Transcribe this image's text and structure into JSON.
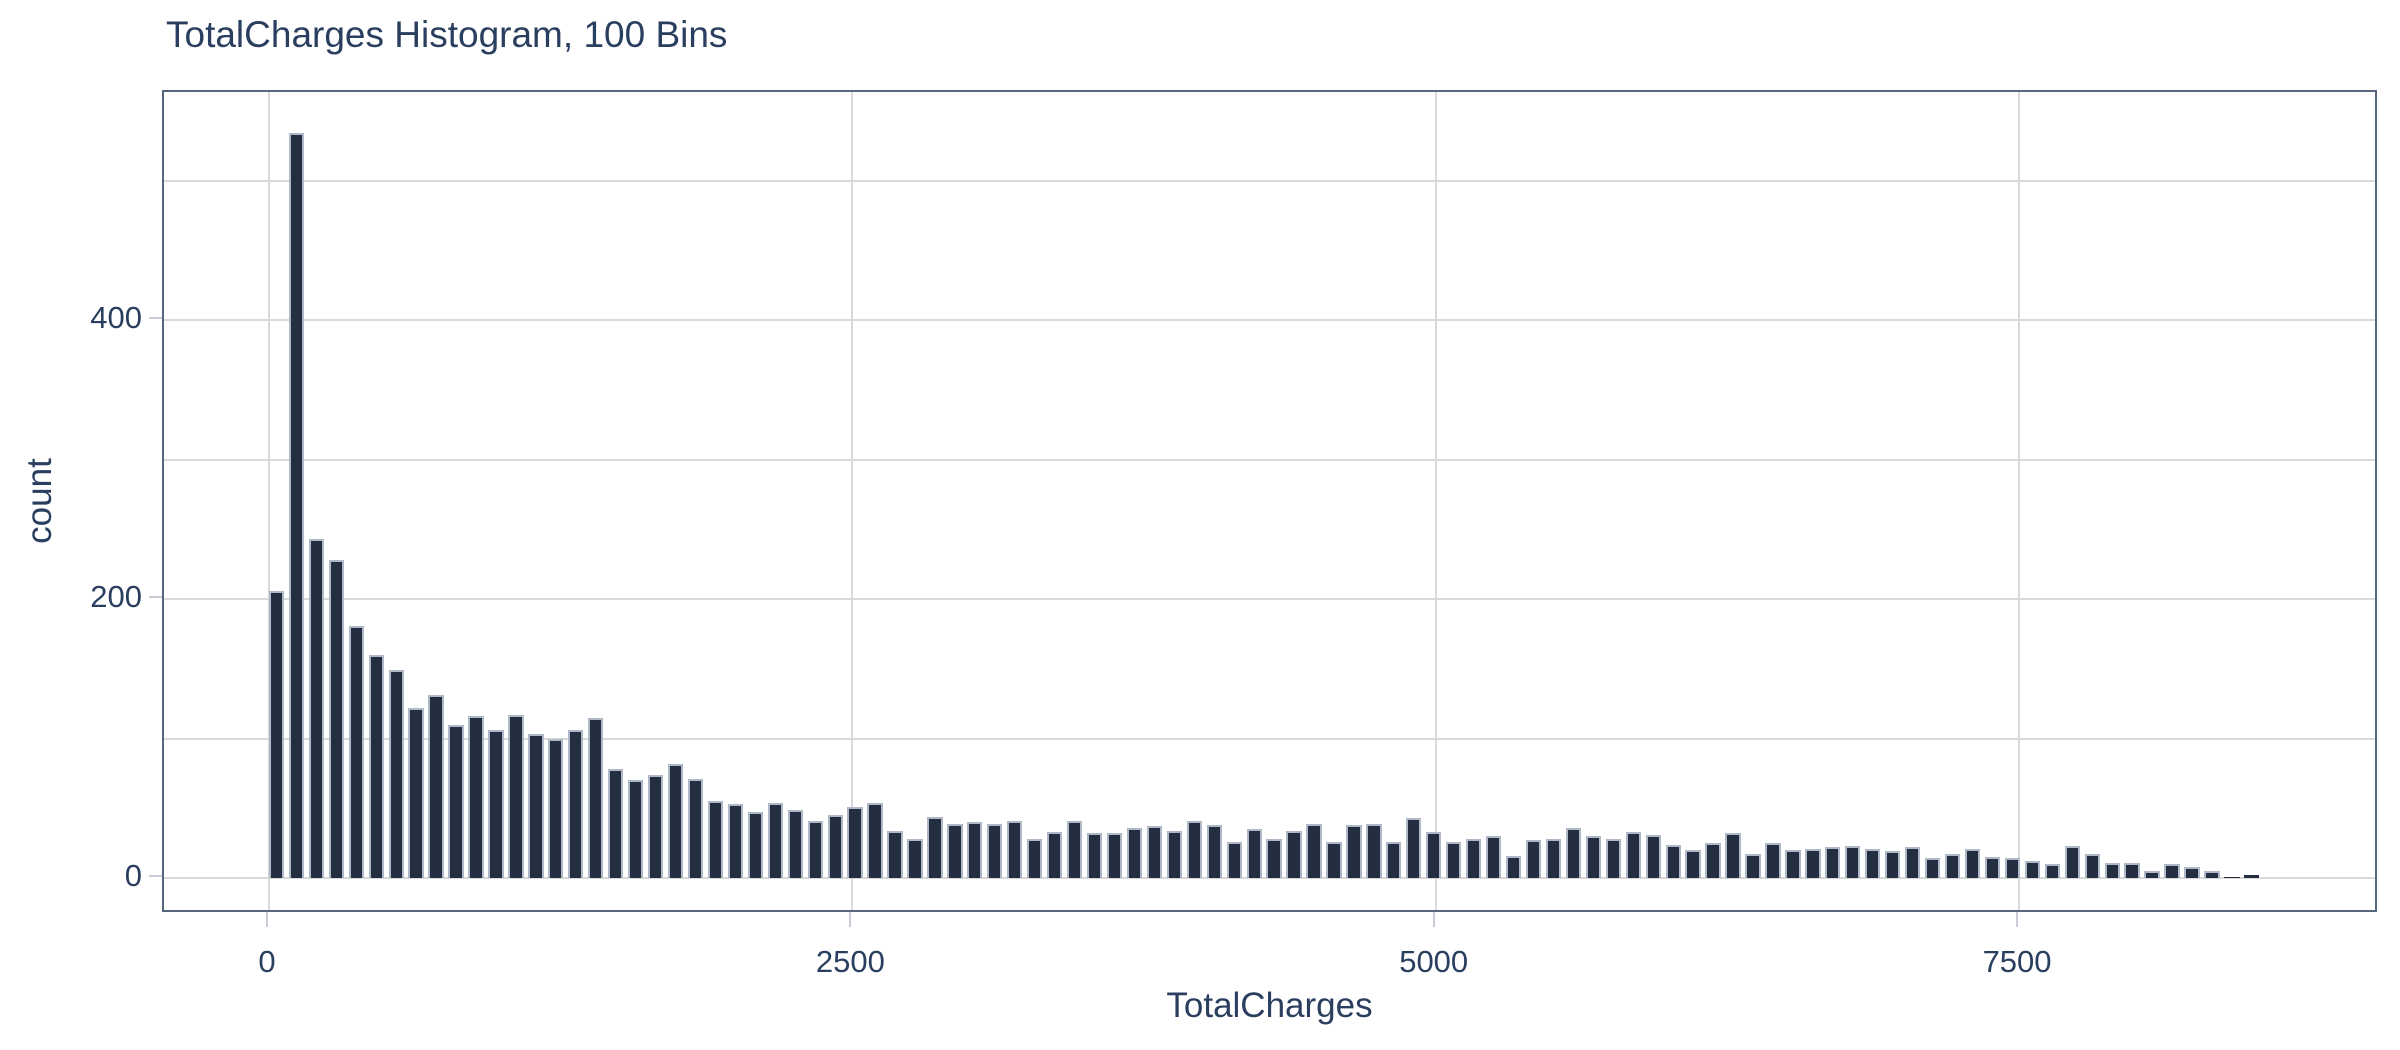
{
  "title": "TotalCharges Histogram, 100 Bins",
  "chart_data": {
    "type": "bar",
    "subtype": "histogram",
    "title": "TotalCharges Histogram, 100 Bins",
    "xlabel": "TotalCharges",
    "ylabel": "count",
    "bins": 100,
    "bin_start": 0,
    "bin_width": 86.7,
    "x_ticks": [
      0,
      2500,
      5000,
      7500
    ],
    "y_ticks": [
      0,
      200,
      400
    ],
    "y_gridline_step": 100,
    "xlim": [
      -450,
      9050
    ],
    "ylim": [
      -26,
      566
    ],
    "grid": true,
    "legend": false,
    "values": [
      206,
      534,
      243,
      228,
      181,
      160,
      149,
      122,
      131,
      110,
      116,
      106,
      117,
      103,
      100,
      106,
      115,
      78,
      70,
      74,
      82,
      71,
      55,
      53,
      47,
      54,
      49,
      41,
      45,
      51,
      54,
      34,
      28,
      44,
      39,
      40,
      39,
      41,
      28,
      33,
      41,
      32,
      32,
      36,
      37,
      34,
      41,
      38,
      26,
      35,
      28,
      34,
      39,
      26,
      38,
      39,
      26,
      43,
      33,
      26,
      28,
      30,
      16,
      27,
      28,
      36,
      30,
      28,
      33,
      31,
      24,
      20,
      25,
      32,
      17,
      25,
      20,
      21,
      22,
      23,
      21,
      19,
      22,
      14,
      17,
      21,
      15,
      14,
      12,
      10,
      23,
      17,
      11,
      11,
      5,
      10,
      8,
      5,
      1,
      2
    ],
    "colors": {
      "bar_fill": "#232e40",
      "bar_outline": "#aeb8c6",
      "gridline": "#d9d9d9",
      "axis_line": "#56677d",
      "font": "#2a3f5f",
      "background": "#ffffff"
    }
  }
}
